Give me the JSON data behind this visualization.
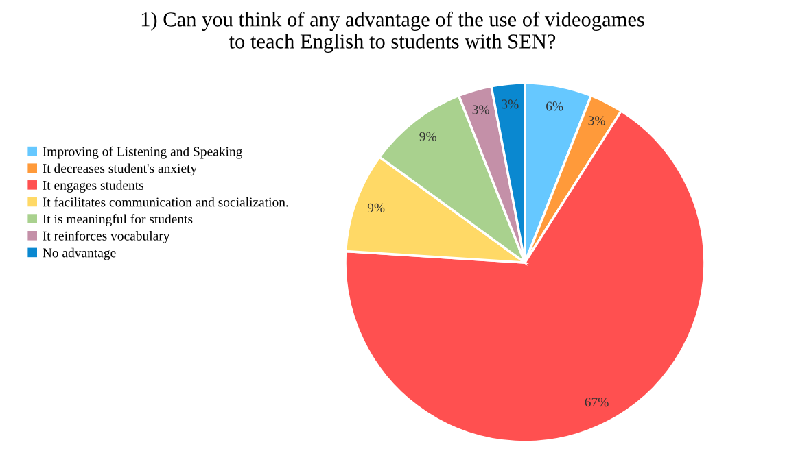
{
  "chart_data": {
    "type": "pie",
    "title": "1) Can you think of any advantage of the use of videogames\nto teach English to students with SEN?",
    "categories": [
      "Improving of Listening and Speaking",
      "It decreases student's anxiety",
      "It engages students",
      "It facilitates communication and socialization.",
      "It is meaningful for students",
      "It reinforces vocabulary",
      "No advantage"
    ],
    "values": [
      6,
      3,
      67,
      9,
      9,
      3,
      3
    ],
    "value_labels": [
      "6%",
      "3%",
      "67%",
      "9%",
      "9%",
      "3%",
      "3%"
    ],
    "colors": [
      "#66c8ff",
      "#ff9a3a",
      "#ff5050",
      "#ffd966",
      "#a9d18e",
      "#c490a8",
      "#0a88d0"
    ],
    "legend": "left"
  }
}
